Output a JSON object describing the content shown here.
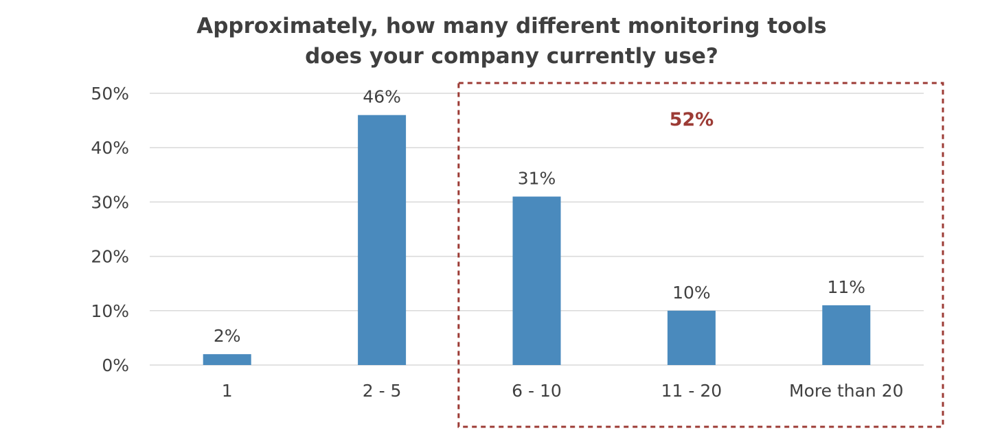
{
  "chart_data": {
    "type": "bar",
    "title_lines": [
      "Approximately, how many different monitoring tools",
      "does your company currently use?"
    ],
    "categories": [
      "1",
      "2 - 5",
      "6 - 10",
      "11 - 20",
      "More than 20"
    ],
    "values": [
      2,
      46,
      31,
      10,
      11
    ],
    "data_labels": [
      "2%",
      "46%",
      "31%",
      "10%",
      "11%"
    ],
    "ylim": [
      0,
      50
    ],
    "yticks": [
      0,
      10,
      20,
      30,
      40,
      50
    ],
    "ytick_labels": [
      "0%",
      "10%",
      "20%",
      "30%",
      "40%",
      "50%"
    ],
    "xlabel": "",
    "ylabel": "",
    "grid": true,
    "legend": "none",
    "bar_color": "#4a8abd",
    "annotation": {
      "label": "52%",
      "color": "#9c3b35",
      "style": "dashed-box",
      "category_range": [
        "6 - 10",
        "More than 20"
      ]
    }
  }
}
